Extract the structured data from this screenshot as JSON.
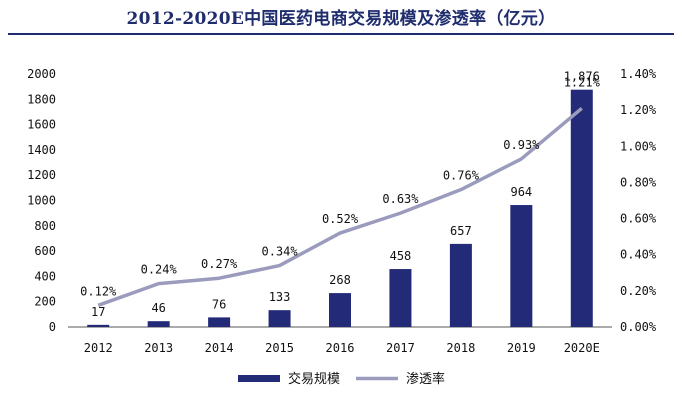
{
  "chart_data": {
    "type": "bar",
    "title": "2012-2020E中国医药电商交易规模及渗透率（亿元）",
    "categories": [
      "2012",
      "2013",
      "2014",
      "2015",
      "2016",
      "2017",
      "2018",
      "2019",
      "2020E"
    ],
    "series": [
      {
        "name": "交易规模",
        "type": "bar",
        "axis": "left",
        "color": "#232a78",
        "values": [
          17,
          46,
          76,
          133,
          268,
          458,
          657,
          964,
          1876
        ],
        "labels": [
          "17",
          "46",
          "76",
          "133",
          "268",
          "458",
          "657",
          "964",
          "1,876"
        ]
      },
      {
        "name": "渗透率",
        "type": "line",
        "axis": "right",
        "color": "#9b9bbd",
        "values": [
          0.12,
          0.24,
          0.27,
          0.34,
          0.52,
          0.63,
          0.76,
          0.93,
          1.21
        ],
        "labels": [
          "0.12%",
          "0.24%",
          "0.27%",
          "0.34%",
          "0.52%",
          "0.63%",
          "0.76%",
          "0.93%",
          "1.21%"
        ]
      }
    ],
    "y_left": {
      "range": [
        0,
        2000
      ],
      "ticks": [
        0,
        200,
        400,
        600,
        800,
        1000,
        1200,
        1400,
        1600,
        1800,
        2000
      ]
    },
    "y_right": {
      "range": [
        0,
        1.4
      ],
      "ticks": [
        "0.00%",
        "0.20%",
        "0.40%",
        "0.60%",
        "0.80%",
        "1.00%",
        "1.20%",
        "1.40%"
      ]
    },
    "grid": false,
    "legend": "bottom-center"
  }
}
